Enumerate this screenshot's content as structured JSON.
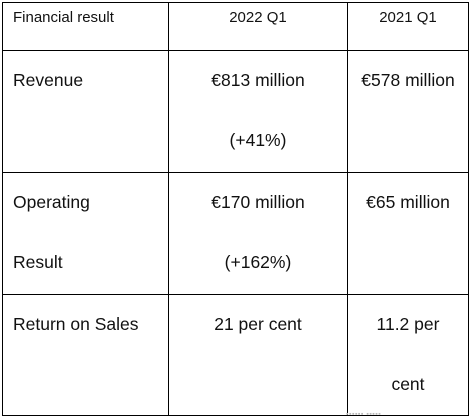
{
  "table": {
    "headers": [
      "Financial result",
      "2022 Q1",
      "2021 Q1"
    ],
    "rows": [
      {
        "label": [
          "Revenue"
        ],
        "q1_2022": [
          "€813 million",
          "(+41%)"
        ],
        "q1_2021": [
          "€578 million"
        ]
      },
      {
        "label": [
          "Operating",
          "Result"
        ],
        "q1_2022": [
          "€170 million",
          "(+162%)"
        ],
        "q1_2021": [
          "€65 million"
        ]
      },
      {
        "label": [
          "Return on Sales"
        ],
        "q1_2022": [
          "21 per cent"
        ],
        "q1_2021": [
          "11.2 per",
          "cent"
        ]
      }
    ]
  }
}
